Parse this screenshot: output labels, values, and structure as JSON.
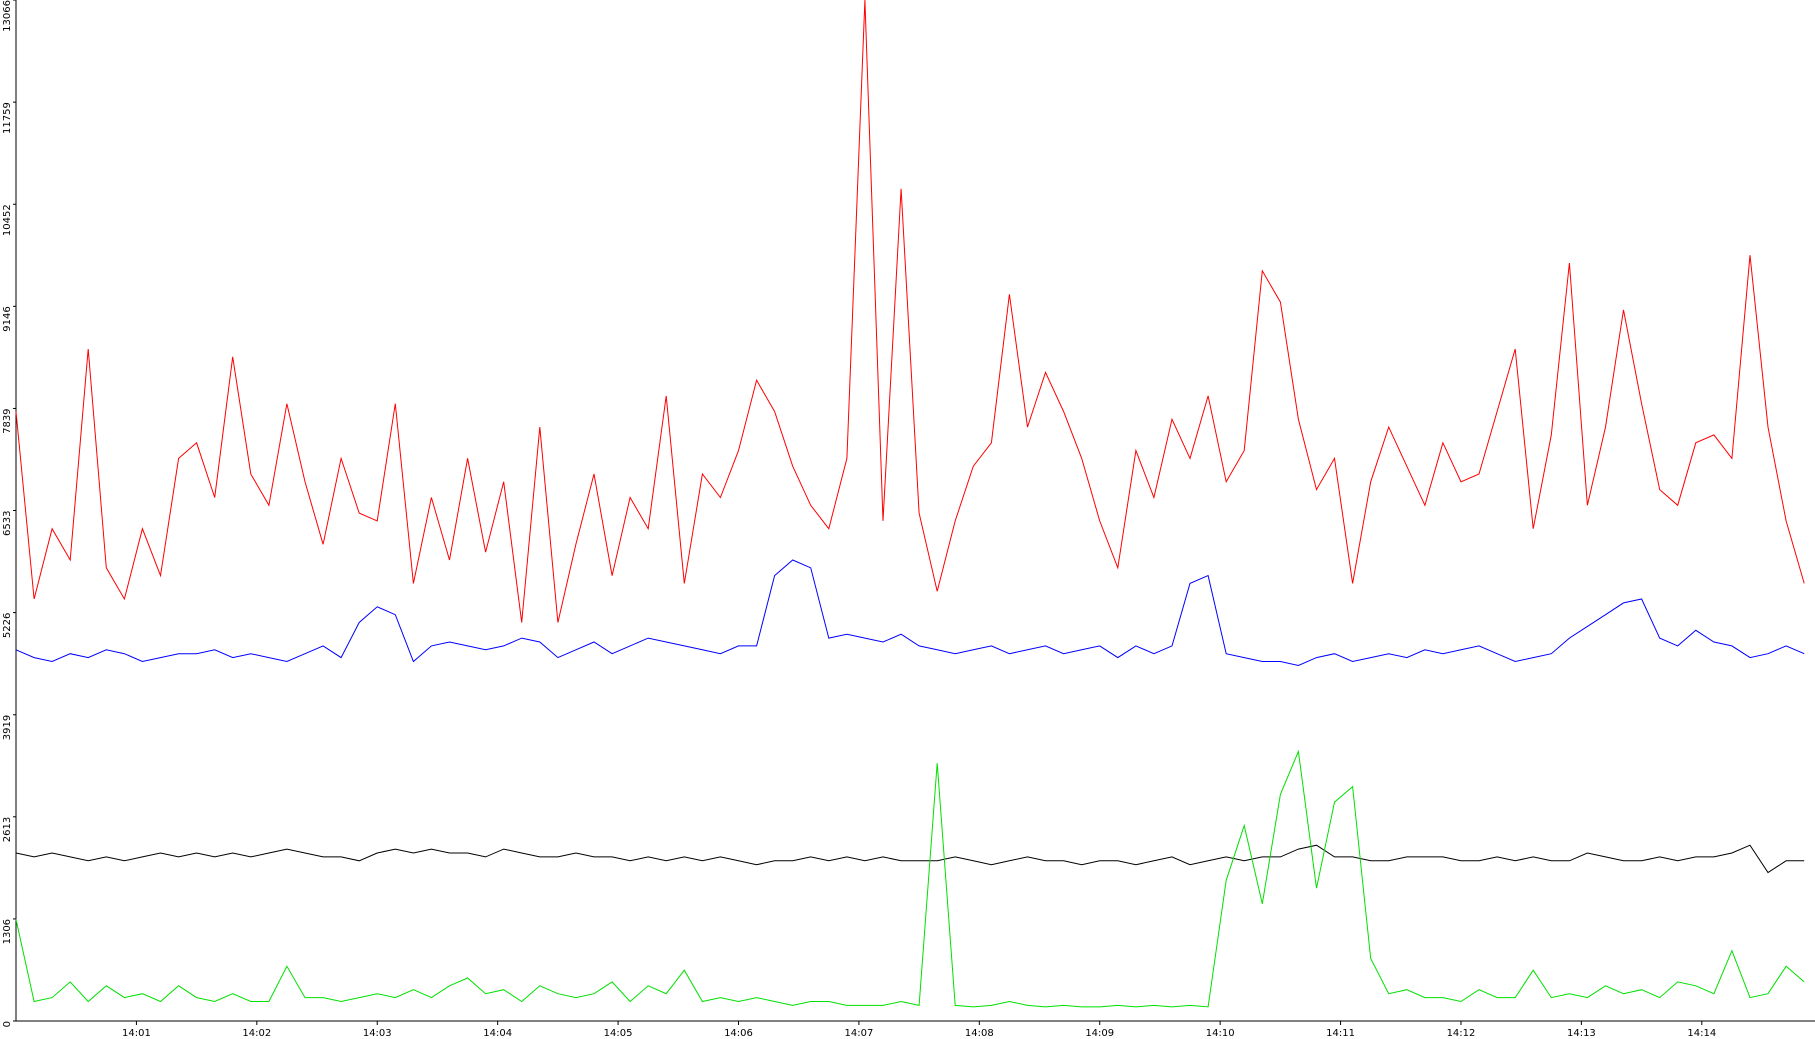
{
  "chart_data": {
    "type": "line",
    "x": [
      0,
      0.15,
      0.3,
      0.45,
      0.6,
      0.75,
      0.9,
      1.05,
      1.2,
      1.35,
      1.5,
      1.65,
      1.8,
      1.95,
      2.1,
      2.25,
      2.4,
      2.55,
      2.7,
      2.85,
      3,
      3.15,
      3.3,
      3.45,
      3.6,
      3.75,
      3.9,
      4.05,
      4.2,
      4.35,
      4.5,
      4.65,
      4.8,
      4.95,
      5.1,
      5.25,
      5.4,
      5.55,
      5.7,
      5.85,
      6,
      6.15,
      6.3,
      6.45,
      6.6,
      6.75,
      6.9,
      7.05,
      7.2,
      7.35,
      7.5,
      7.65,
      7.8,
      7.95,
      8.1,
      8.25,
      8.4,
      8.55,
      8.7,
      8.85,
      9,
      9.15,
      9.3,
      9.45,
      9.6,
      9.75,
      9.9,
      10.05,
      10.2,
      10.35,
      10.5,
      10.65,
      10.8,
      10.95,
      11.1,
      11.25,
      11.4,
      11.55,
      11.7,
      11.85,
      12,
      12.15,
      12.3,
      12.45,
      12.6,
      12.75,
      12.9,
      13.05,
      13.2,
      13.35,
      13.5,
      13.65,
      13.8,
      13.95,
      14.1,
      14.25,
      14.4,
      14.55,
      14.7,
      14.85
    ],
    "series": [
      {
        "color": "#ff0000",
        "values": [
          7800,
          5400,
          6300,
          5900,
          8600,
          5800,
          5400,
          6300,
          5700,
          7200,
          7400,
          6700,
          8500,
          7000,
          6600,
          7900,
          6900,
          6100,
          7200,
          6500,
          6400,
          7900,
          5600,
          6700,
          5900,
          7200,
          6000,
          6900,
          5100,
          7600,
          5100,
          6100,
          7000,
          5700,
          6700,
          6300,
          8000,
          5600,
          7000,
          6700,
          7300,
          8200,
          7800,
          7100,
          6600,
          6300,
          7200,
          13066,
          6400,
          10650,
          6500,
          5500,
          6400,
          7100,
          7400,
          9300,
          7600,
          8300,
          7800,
          7200,
          6400,
          5800,
          7300,
          6700,
          7700,
          7200,
          8000,
          6900,
          7300,
          9600,
          9200,
          7700,
          6800,
          7200,
          5600,
          6900,
          7600,
          7100,
          6600,
          7400,
          6900,
          7000,
          7800,
          8600,
          6300,
          7500,
          9700,
          6600,
          7600,
          9100,
          7900,
          6800,
          6600,
          7400,
          7500,
          7200,
          9800,
          7600,
          6400,
          5600
        ]
      },
      {
        "color": "#0000ff",
        "values": [
          4750,
          4650,
          4600,
          4700,
          4650,
          4750,
          4700,
          4600,
          4650,
          4700,
          4700,
          4750,
          4650,
          4700,
          4650,
          4600,
          4700,
          4800,
          4650,
          5100,
          5300,
          5200,
          4600,
          4800,
          4850,
          4800,
          4750,
          4800,
          4900,
          4850,
          4650,
          4750,
          4850,
          4700,
          4800,
          4900,
          4850,
          4800,
          4750,
          4700,
          4800,
          4800,
          5700,
          5900,
          5800,
          4900,
          4950,
          4900,
          4850,
          4950,
          4800,
          4750,
          4700,
          4750,
          4800,
          4700,
          4750,
          4800,
          4700,
          4750,
          4800,
          4650,
          4800,
          4700,
          4800,
          5600,
          5700,
          4700,
          4650,
          4600,
          4600,
          4550,
          4650,
          4700,
          4600,
          4650,
          4700,
          4650,
          4750,
          4700,
          4750,
          4800,
          4700,
          4600,
          4650,
          4700,
          4900,
          5050,
          5200,
          5350,
          5400,
          4900,
          4800,
          5000,
          4850,
          4800,
          4650,
          4700,
          4800,
          4700
        ]
      },
      {
        "color": "#000000",
        "values": [
          2150,
          2100,
          2150,
          2100,
          2050,
          2100,
          2050,
          2100,
          2150,
          2100,
          2150,
          2100,
          2150,
          2100,
          2150,
          2200,
          2150,
          2100,
          2100,
          2050,
          2150,
          2200,
          2150,
          2200,
          2150,
          2150,
          2100,
          2200,
          2150,
          2100,
          2100,
          2150,
          2100,
          2100,
          2050,
          2100,
          2050,
          2100,
          2050,
          2100,
          2050,
          2000,
          2050,
          2050,
          2100,
          2050,
          2100,
          2050,
          2100,
          2050,
          2050,
          2050,
          2100,
          2050,
          2000,
          2050,
          2100,
          2050,
          2050,
          2000,
          2050,
          2050,
          2000,
          2050,
          2100,
          2000,
          2050,
          2100,
          2050,
          2100,
          2100,
          2200,
          2250,
          2100,
          2100,
          2050,
          2050,
          2100,
          2100,
          2100,
          2050,
          2050,
          2100,
          2050,
          2100,
          2050,
          2050,
          2150,
          2100,
          2050,
          2050,
          2100,
          2050,
          2100,
          2100,
          2150,
          2250,
          1900,
          2050,
          2050
        ]
      },
      {
        "color": "#00e000",
        "values": [
          1300,
          250,
          300,
          500,
          250,
          450,
          300,
          350,
          250,
          450,
          300,
          250,
          350,
          250,
          250,
          700,
          300,
          300,
          250,
          300,
          350,
          300,
          400,
          300,
          450,
          550,
          350,
          400,
          250,
          450,
          350,
          300,
          350,
          500,
          250,
          450,
          350,
          650,
          250,
          300,
          250,
          300,
          250,
          200,
          250,
          250,
          200,
          200,
          200,
          250,
          200,
          3300,
          200,
          180,
          200,
          250,
          200,
          180,
          200,
          180,
          180,
          200,
          180,
          200,
          180,
          200,
          180,
          1800,
          2500,
          1500,
          2900,
          3450,
          1700,
          2800,
          3000,
          800,
          350,
          400,
          300,
          300,
          250,
          400,
          300,
          300,
          650,
          300,
          350,
          300,
          450,
          350,
          400,
          300,
          500,
          450,
          350,
          900,
          300,
          350,
          700,
          500
        ]
      }
    ],
    "xlim": [
      0,
      14.94
    ],
    "xticks": [
      {
        "value": 1,
        "label": "14:01"
      },
      {
        "value": 2,
        "label": "14:02"
      },
      {
        "value": 3,
        "label": "14:03"
      },
      {
        "value": 4,
        "label": "14:04"
      },
      {
        "value": 5,
        "label": "14:05"
      },
      {
        "value": 6,
        "label": "14:06"
      },
      {
        "value": 7,
        "label": "14:07"
      },
      {
        "value": 8,
        "label": "14:08"
      },
      {
        "value": 9,
        "label": "14:09"
      },
      {
        "value": 10,
        "label": "14:10"
      },
      {
        "value": 11,
        "label": "14:11"
      },
      {
        "value": 12,
        "label": "14:12"
      },
      {
        "value": 13,
        "label": "14:13"
      },
      {
        "value": 14,
        "label": "14:14"
      }
    ],
    "ylim": [
      0,
      13066
    ],
    "yticks": [
      0,
      1306,
      2613,
      3919,
      5226,
      6533,
      7839,
      9146,
      10452,
      11759,
      13066
    ]
  }
}
